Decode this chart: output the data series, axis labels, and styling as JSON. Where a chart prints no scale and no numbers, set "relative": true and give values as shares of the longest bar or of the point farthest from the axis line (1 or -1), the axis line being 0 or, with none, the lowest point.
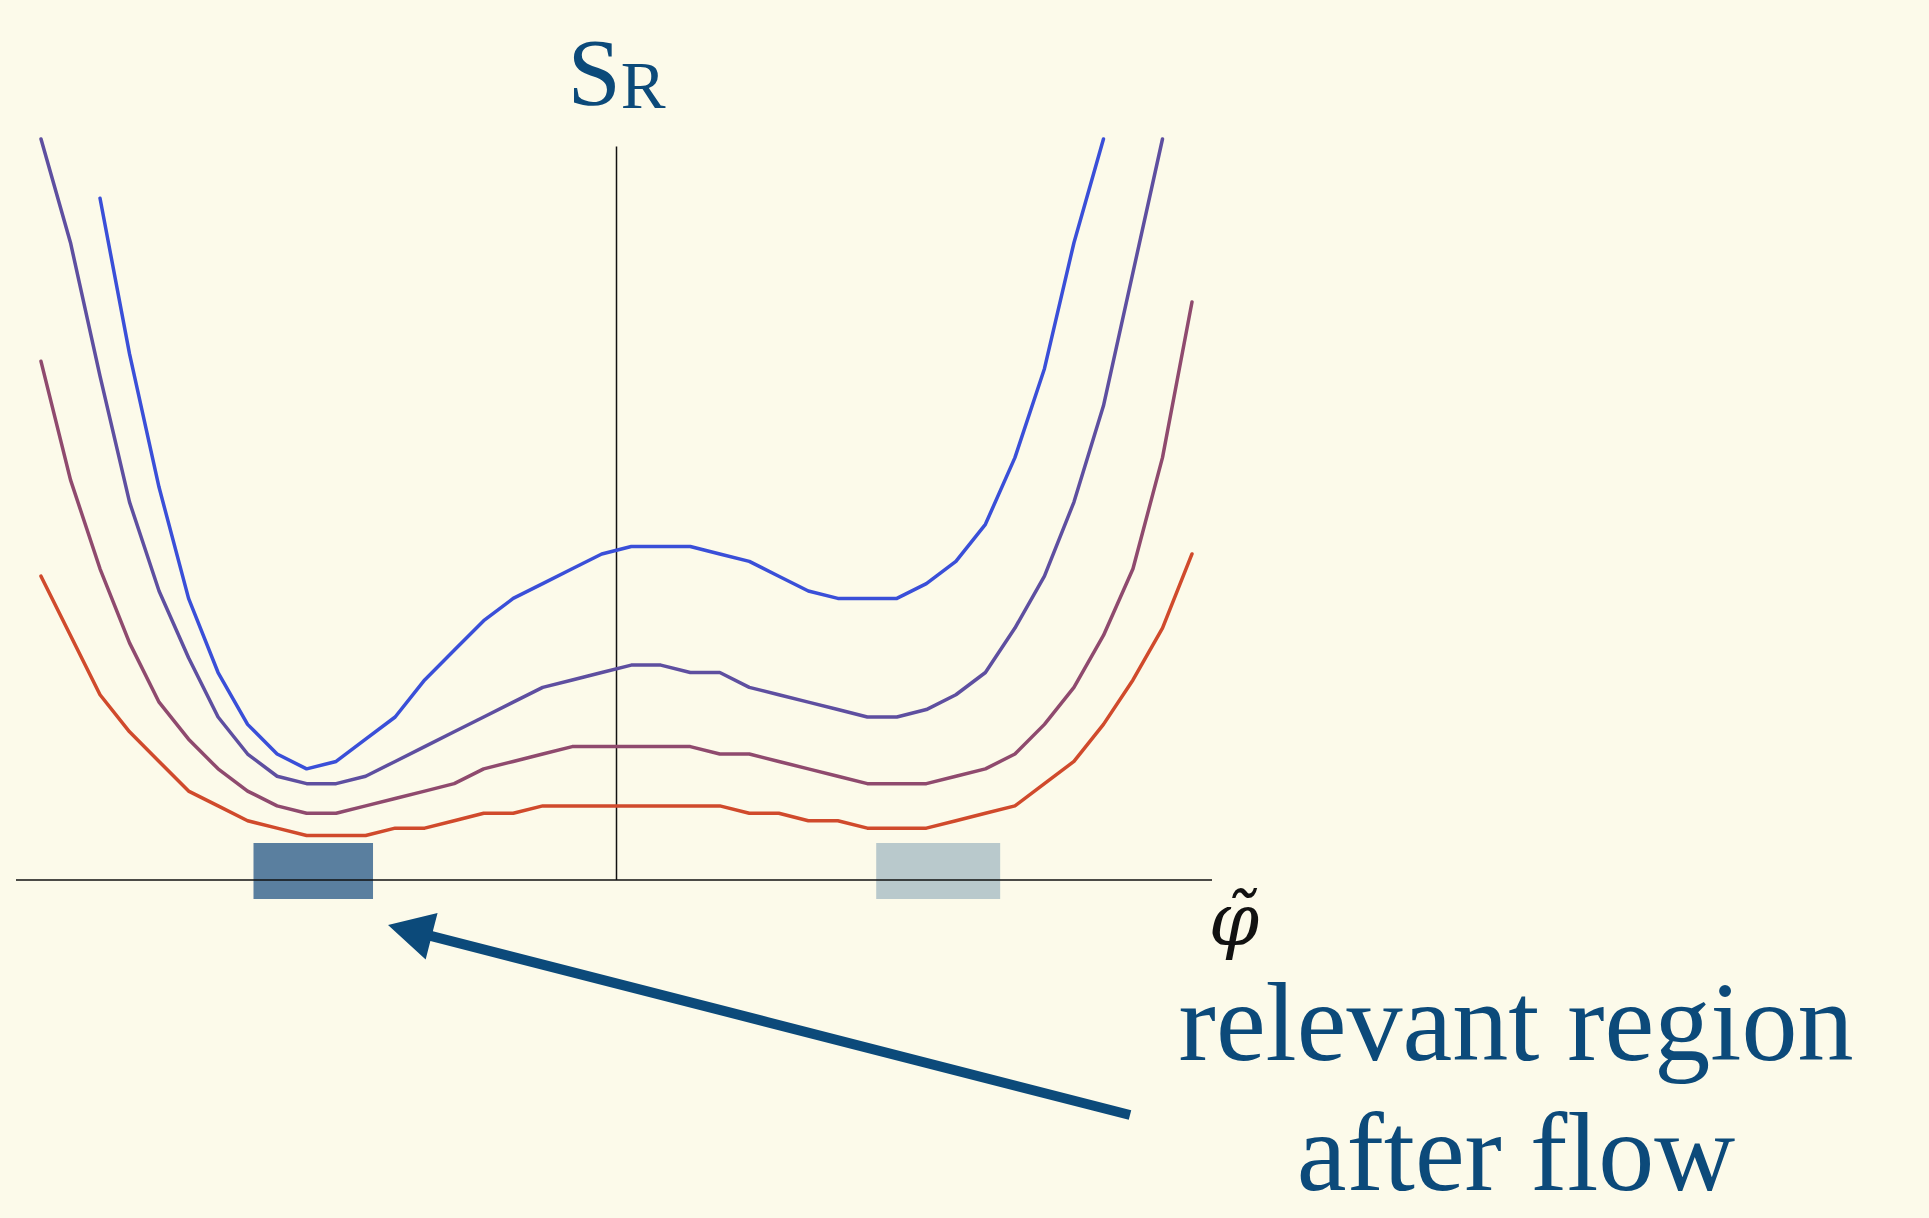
{
  "chart_data": {
    "type": "line",
    "relative": true,
    "ylabel": "S$_{R}$",
    "xlabel": "φ̃",
    "annotations": [
      "relevant region after flow"
    ],
    "categories": [
      null,
      null,
      null,
      null,
      null,
      null,
      null,
      null,
      null,
      null,
      null,
      null,
      null,
      null,
      null,
      null,
      null,
      null,
      null,
      null,
      null,
      null,
      null,
      null,
      null,
      null,
      null,
      null,
      null,
      null,
      null,
      null,
      null,
      null,
      null,
      null,
      null,
      null,
      null,
      null
    ],
    "series": [
      {
        "color": "#3a4fd8",
        "values": [
          null,
          null,
          0.92,
          0.71,
          0.53,
          0.38,
          0.28,
          0.21,
          0.17,
          0.15,
          0.16,
          0.19,
          0.22,
          0.27,
          0.31,
          0.35,
          0.38,
          0.4,
          0.42,
          0.44,
          0.45,
          0.45,
          0.45,
          0.44,
          0.43,
          0.41,
          0.39,
          0.38,
          0.38,
          0.38,
          0.4,
          0.43,
          0.48,
          0.57,
          0.69,
          0.86,
          1.0,
          null,
          null,
          null
        ]
      },
      {
        "color": "#5e4fa0",
        "values": [
          1.0,
          0.86,
          0.68,
          0.51,
          0.39,
          0.3,
          0.22,
          0.17,
          0.14,
          0.13,
          0.13,
          0.14,
          0.16,
          0.18,
          0.2,
          0.22,
          0.24,
          0.26,
          0.27,
          0.28,
          0.29,
          0.29,
          0.28,
          0.28,
          0.26,
          0.25,
          0.24,
          0.23,
          0.22,
          0.22,
          0.23,
          0.25,
          0.28,
          0.34,
          0.41,
          0.51,
          0.64,
          0.82,
          1.0,
          null
        ]
      },
      {
        "color": "#8f4a6e",
        "values": [
          0.7,
          0.54,
          0.42,
          0.32,
          0.24,
          0.19,
          0.15,
          0.12,
          0.1,
          0.09,
          0.09,
          0.1,
          0.11,
          0.12,
          0.13,
          0.15,
          0.16,
          0.17,
          0.18,
          0.18,
          0.18,
          0.18,
          0.18,
          0.17,
          0.17,
          0.16,
          0.15,
          0.14,
          0.13,
          0.13,
          0.13,
          0.14,
          0.15,
          0.17,
          0.21,
          0.26,
          0.33,
          0.42,
          0.57,
          0.78
        ]
      },
      {
        "color": "#d04a2c",
        "values": [
          0.41,
          0.33,
          0.25,
          0.2,
          0.16,
          0.12,
          0.1,
          0.08,
          0.07,
          0.06,
          0.06,
          0.06,
          0.07,
          0.07,
          0.08,
          0.09,
          0.09,
          0.1,
          0.1,
          0.1,
          0.1,
          0.1,
          0.1,
          0.1,
          0.09,
          0.09,
          0.08,
          0.08,
          0.07,
          0.07,
          0.07,
          0.08,
          0.09,
          0.1,
          0.13,
          0.16,
          0.21,
          0.27,
          0.34,
          0.44
        ]
      }
    ]
  }
}
